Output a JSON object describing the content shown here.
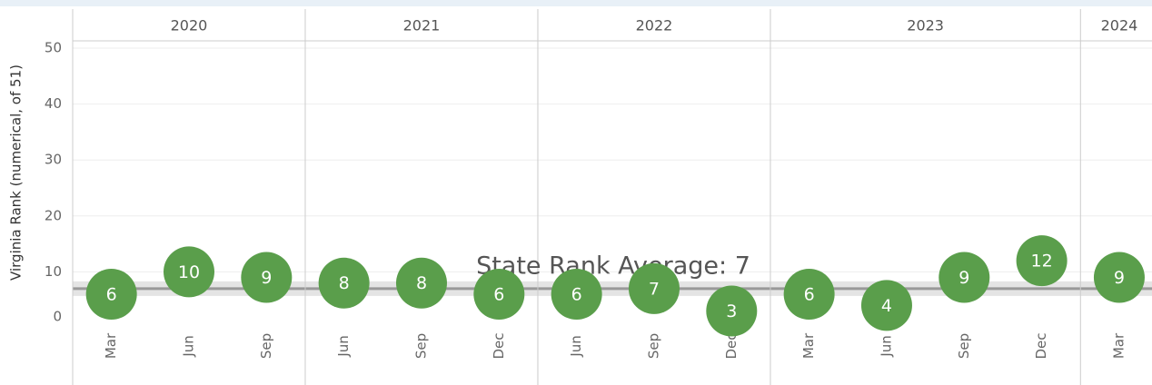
{
  "chart_data": {
    "type": "dot",
    "y_label": "Virginia Rank (numerical, of 51)",
    "ylim": [
      0,
      50
    ],
    "yticks": [
      0,
      10,
      20,
      30,
      40,
      50
    ],
    "grid": true,
    "color": "#5a9e4b",
    "average": {
      "label": "State Rank Average: 7",
      "value": 7
    },
    "groups": [
      {
        "year": "2020",
        "categories": [
          "Mar",
          "Jun",
          "Sep"
        ],
        "values": [
          6,
          10,
          9
        ]
      },
      {
        "year": "2021",
        "categories": [
          "Jun",
          "Sep",
          "Dec"
        ],
        "values": [
          8,
          8,
          6
        ]
      },
      {
        "year": "2022",
        "categories": [
          "Jun",
          "Sep",
          "Dec"
        ],
        "values": [
          6,
          7,
          3
        ]
      },
      {
        "year": "2023",
        "categories": [
          "Mar",
          "Jun",
          "Sep",
          "Dec"
        ],
        "values": [
          6,
          4,
          9,
          12
        ]
      },
      {
        "year": "2024",
        "categories": [
          "Mar"
        ],
        "values": [
          9
        ]
      }
    ]
  }
}
